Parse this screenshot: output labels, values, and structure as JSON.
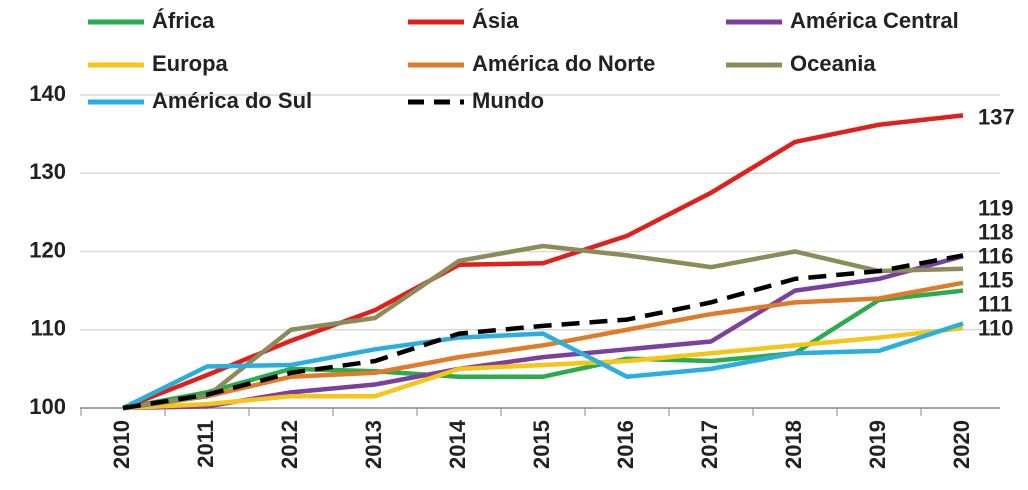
{
  "chart_data": {
    "type": "line",
    "categories": [
      "2010",
      "2011",
      "2012",
      "2013",
      "2014",
      "2015",
      "2016",
      "2017",
      "2018",
      "2019",
      "2020"
    ],
    "ylim": [
      100,
      140
    ],
    "yticks": [
      100,
      110,
      120,
      130,
      140
    ],
    "grid": true,
    "series": [
      {
        "name": "África",
        "color": "#2bab4f",
        "values": [
          100,
          102,
          105,
          104.7,
          104,
          104,
          106.3,
          106,
          107,
          113.8,
          115.0
        ],
        "end_label": 115
      },
      {
        "name": "Ásia",
        "color": "#e0201b",
        "values": [
          100,
          104.2,
          108.6,
          112.5,
          118.3,
          118.5,
          122,
          127.5,
          134,
          136.2,
          137.4
        ],
        "end_label": 137
      },
      {
        "name": "América Central",
        "color": "#7b3fa0",
        "values": [
          100,
          100.2,
          102,
          103,
          105,
          106.5,
          107.5,
          108.5,
          115,
          116.5,
          119.4
        ],
        "end_label": 119
      },
      {
        "name": "Europa",
        "color": "#f5c518",
        "values": [
          100,
          100.5,
          101.5,
          101.5,
          105,
          105.5,
          106,
          107,
          108,
          109,
          110.2
        ],
        "end_label": 110
      },
      {
        "name": "América do Norte",
        "color": "#e07b2a",
        "values": [
          100,
          101.5,
          104,
          104.5,
          106.5,
          108,
          110,
          112,
          113.5,
          114,
          116.0
        ],
        "end_label": 116
      },
      {
        "name": "Oceania",
        "color": "#8c8c5a",
        "values": [
          100,
          101.5,
          110,
          111.5,
          118.8,
          120.7,
          119.5,
          118,
          120,
          117.5,
          117.8
        ],
        "end_label": 118
      },
      {
        "name": "América do Sul",
        "color": "#2aaee0",
        "values": [
          100,
          105.3,
          105.5,
          107.5,
          109,
          109.5,
          104,
          105,
          107,
          107.3,
          110.8
        ],
        "end_label": 111
      },
      {
        "name": "Mundo",
        "color": "#000000",
        "dashed": true,
        "values": [
          100,
          101.7,
          104.5,
          106,
          109.5,
          110.5,
          111.3,
          113.5,
          116.5,
          117.5,
          119.5
        ]
      }
    ]
  }
}
